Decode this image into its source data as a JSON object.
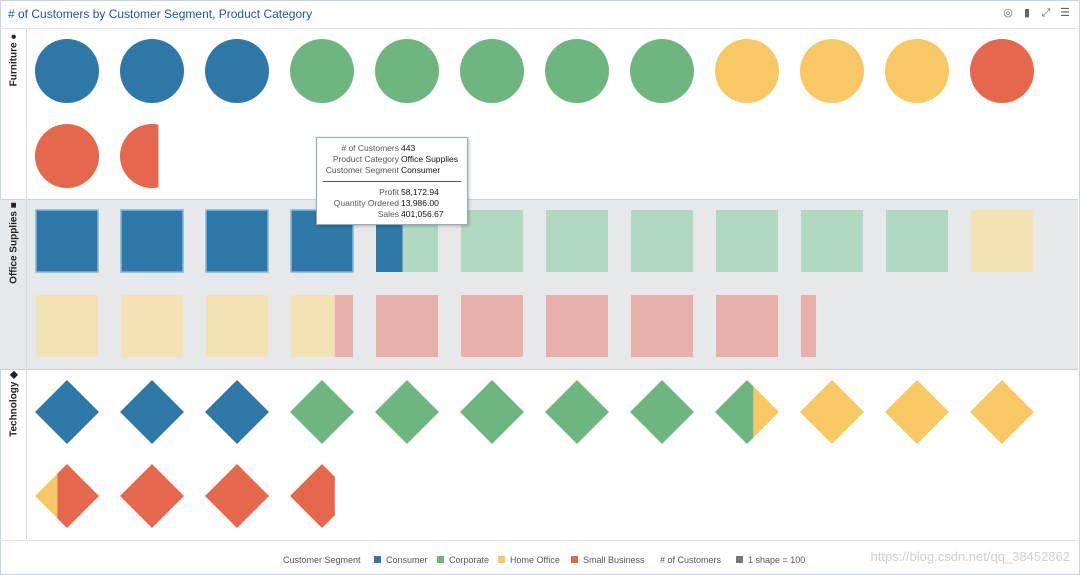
{
  "title": "# of Customers by Customer Segment, Product Category",
  "toolbar": [
    {
      "icon": "target-icon",
      "glyph": "◎"
    },
    {
      "icon": "bar-chart-icon",
      "glyph": "▮"
    },
    {
      "icon": "expand-icon",
      "glyph": "⤢"
    },
    {
      "icon": "menu-icon",
      "glyph": "☰"
    }
  ],
  "rows": [
    {
      "label": "Furniture ●",
      "shape": "circle"
    },
    {
      "label": "Office Supplies ■",
      "shape": "square"
    },
    {
      "label": "Technology ◆",
      "shape": "diamond"
    }
  ],
  "colors": {
    "Consumer": "#2e78a8",
    "Corporate": "#6fb57f",
    "Home Office": "#f7c863",
    "Small Business": "#e5674c",
    "Consumer_faded": "#2e78a8",
    "Corporate_faded": "#b1d8c0",
    "Home Office_faded": "#f3e2b3",
    "Small Business_faded": "#e9b0ab"
  },
  "chart_data": {
    "type": "unit-shape",
    "unit": "1 shape = 100",
    "measure": "# of Customers",
    "segments": [
      "Consumer",
      "Corporate",
      "Home Office",
      "Small Business"
    ],
    "categories": [
      "Furniture",
      "Office Supplies",
      "Technology"
    ],
    "shapes_per_segment": {
      "Furniture": [
        3,
        5,
        3,
        2.6
      ],
      "Office Supplies": [
        4.43,
        6.57,
        4.7,
        5.55
      ],
      "Technology": [
        3,
        5.6,
        3.75,
        3.35
      ]
    },
    "highlighted": {
      "Product Category": "Office Supplies",
      "Customer Segment": "Consumer"
    }
  },
  "tooltip": {
    "rows": [
      {
        "k": "# of Customers",
        "v": "443"
      },
      {
        "k": "Product Category",
        "v": "Office Supplies"
      },
      {
        "k": "Customer Segment",
        "v": "Consumer"
      },
      {
        "k": "Profit",
        "v": "58,172.94"
      },
      {
        "k": "Quantity Ordered",
        "v": "13,986.00"
      },
      {
        "k": "Sales",
        "v": "401,056.67"
      }
    ]
  },
  "legend": {
    "segment_title": "Customer Segment",
    "items": [
      "Consumer",
      "Corporate",
      "Home Office",
      "Small Business"
    ],
    "measure_title": "# of Customers",
    "unit_label": "1 shape = 100",
    "unit_color": "#777777"
  },
  "watermark": "https://blog.csdn.net/qq_38452862"
}
